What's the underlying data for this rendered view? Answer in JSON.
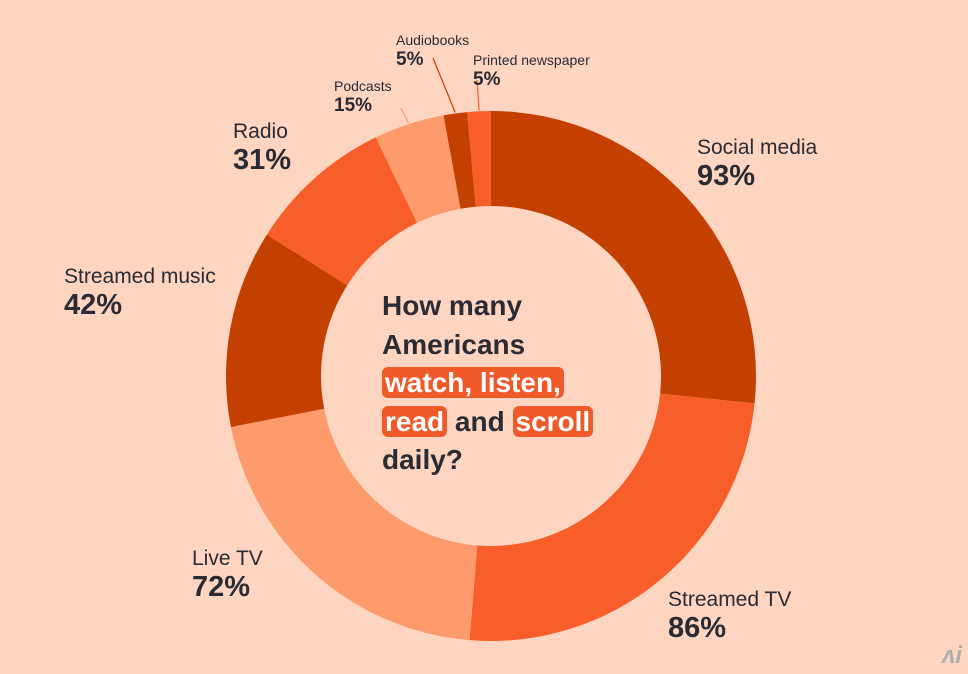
{
  "chart_data": {
    "type": "pie",
    "title_lines": [
      [
        {
          "text": "How many",
          "highlight": false
        }
      ],
      [
        {
          "text": "Americans",
          "highlight": false
        }
      ],
      [
        {
          "text": "watch, listen,",
          "highlight": true
        }
      ],
      [
        {
          "text": "read",
          "highlight": true
        },
        {
          "text": " and ",
          "highlight": false
        },
        {
          "text": "scroll",
          "highlight": true
        }
      ],
      [
        {
          "text": "daily?",
          "highlight": false
        }
      ]
    ],
    "slices": [
      {
        "label": "Social media",
        "value": 93,
        "value_label": "93%",
        "color": "#c34000"
      },
      {
        "label": "Streamed TV",
        "value": 86,
        "value_label": "86%",
        "color": "#f75e2a"
      },
      {
        "label": "Live TV",
        "value": 72,
        "value_label": "72%",
        "color": "#fe9b6c"
      },
      {
        "label": "Streamed music",
        "value": 42,
        "value_label": "42%",
        "color": "#c34000"
      },
      {
        "label": "Radio",
        "value": 31,
        "value_label": "31%",
        "color": "#f75e2a"
      },
      {
        "label": "Podcasts",
        "value": 15,
        "value_label": "15%",
        "color": "#fe9b6c"
      },
      {
        "label": "Audiobooks",
        "value": 5,
        "value_label": "5%",
        "color": "#c34000"
      },
      {
        "label": "Printed newspaper",
        "value": 5,
        "value_label": "5%",
        "color": "#f75e2a"
      }
    ],
    "background_color": "#fdd5c0",
    "highlight_color": "#f05a28",
    "text_color": "#2b2b35"
  }
}
